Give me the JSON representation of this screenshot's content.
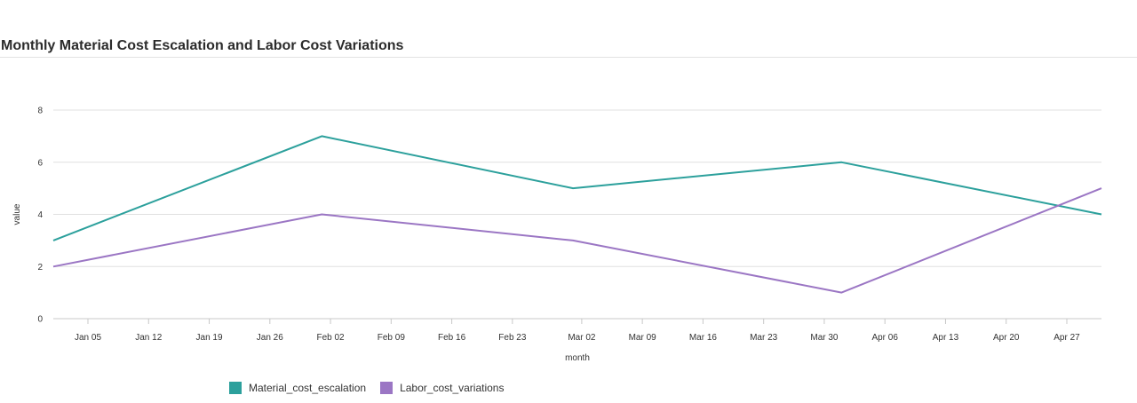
{
  "title": "Monthly Material Cost Escalation and Labor Cost Variations",
  "chart_data": {
    "type": "line",
    "xlabel": "month",
    "ylabel": "value",
    "ylim": [
      0,
      8
    ],
    "yticks": [
      0,
      2,
      4,
      6,
      8
    ],
    "xlim": [
      "2024-01-01",
      "2024-05-01"
    ],
    "xticks": [
      "Jan 05",
      "Jan 12",
      "Jan 19",
      "Jan 26",
      "Feb 02",
      "Feb 09",
      "Feb 16",
      "Feb 23",
      "Mar 02",
      "Mar 09",
      "Mar 16",
      "Mar 23",
      "Mar 30",
      "Apr 06",
      "Apr 13",
      "Apr 20",
      "Apr 27"
    ],
    "x": [
      "2024-01-01",
      "2024-02-01",
      "2024-03-01",
      "2024-04-01",
      "2024-05-01"
    ],
    "series": [
      {
        "name": "Material_cost_escalation",
        "color": "#2ca09c",
        "values": [
          3,
          7,
          5,
          6,
          4
        ]
      },
      {
        "name": "Labor_cost_variations",
        "color": "#9b76c4",
        "values": [
          2,
          4,
          3,
          1,
          5
        ]
      }
    ],
    "grid": true,
    "legend": "bottom-left"
  }
}
